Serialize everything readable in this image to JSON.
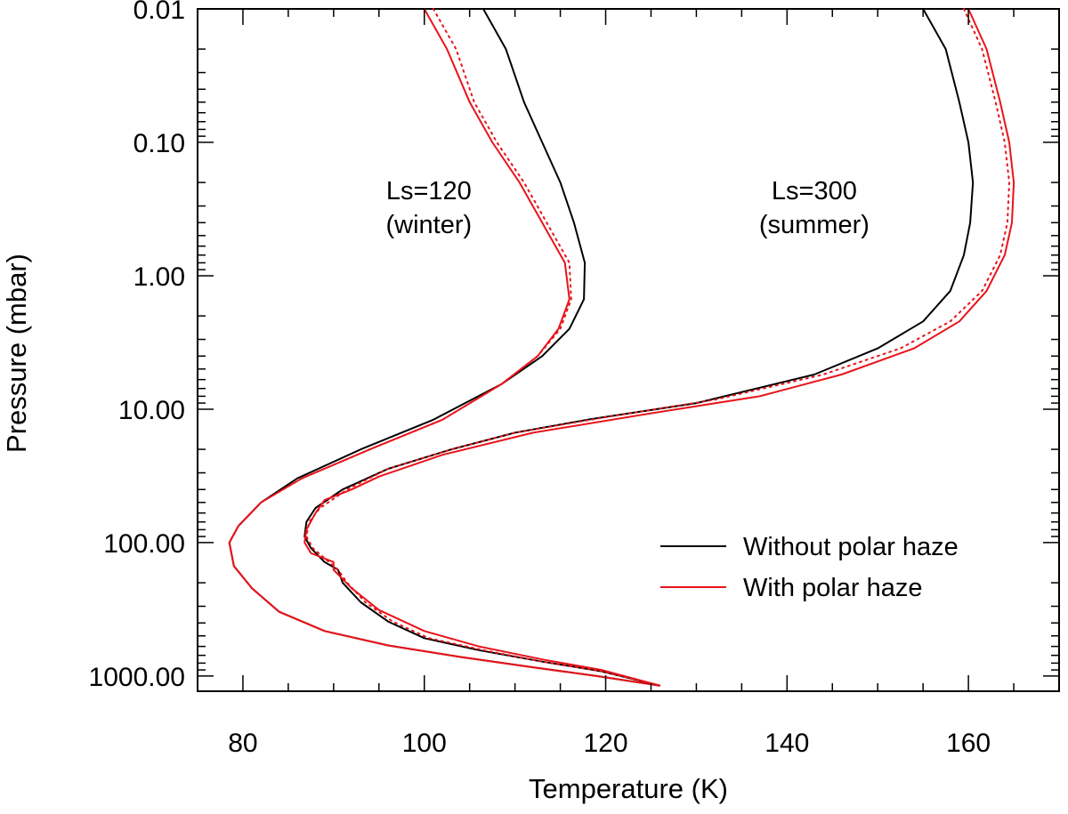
{
  "chart_data": {
    "type": "line",
    "title": "",
    "xlabel": "Temperature (K)",
    "ylabel": "Pressure (mbar)",
    "xlim": [
      75,
      170
    ],
    "ylim": [
      0.01,
      1300
    ],
    "y_scale": "log",
    "y_reversed": true,
    "grid": false,
    "xticks": [
      80,
      100,
      120,
      140,
      160
    ],
    "xtick_labels": [
      "80",
      "100",
      "120",
      "140",
      "160"
    ],
    "yticks": [
      0.01,
      0.1,
      1,
      10,
      100,
      1000
    ],
    "ytick_labels": [
      "0.01",
      "0.10",
      "1.00",
      "10.00",
      "100.00",
      "1000.00"
    ],
    "legend_position": "lower-right",
    "legend": [
      {
        "label": "Without polar haze",
        "color": "#000000"
      },
      {
        "label": "With polar haze",
        "color": "#e8141b"
      }
    ],
    "annotations": [
      {
        "line1": "Ls=120",
        "line2": "(winter)",
        "T": 100.5,
        "P": 0.45
      },
      {
        "line1": "Ls=300",
        "line2": "(summer)",
        "T": 143,
        "P": 0.45
      }
    ],
    "series": [
      {
        "group": "Ls=120",
        "color": "#000000",
        "style": "solid",
        "points": [
          [
            106.5,
            0.01
          ],
          [
            109,
            0.02
          ],
          [
            111,
            0.05
          ],
          [
            113,
            0.1
          ],
          [
            115,
            0.2
          ],
          [
            116.5,
            0.4
          ],
          [
            117.7,
            0.8
          ],
          [
            117.6,
            1.5
          ],
          [
            116,
            2.5
          ],
          [
            113,
            4
          ],
          [
            108.5,
            6.5
          ],
          [
            101,
            12
          ],
          [
            93,
            20
          ],
          [
            86,
            33
          ],
          [
            82,
            50
          ],
          [
            79.5,
            75
          ],
          [
            78.5,
            100
          ],
          [
            79,
            150
          ],
          [
            81,
            220
          ],
          [
            84,
            330
          ],
          [
            89,
            460
          ],
          [
            96,
            590
          ],
          [
            104,
            720
          ],
          [
            112,
            860
          ],
          [
            119,
            1000
          ],
          [
            126,
            1180
          ]
        ]
      },
      {
        "group": "Ls=120",
        "color": "#e8141b",
        "style": "solid",
        "points": [
          [
            100,
            0.01
          ],
          [
            102.5,
            0.02
          ],
          [
            105,
            0.05
          ],
          [
            107.5,
            0.1
          ],
          [
            110.5,
            0.2
          ],
          [
            113,
            0.4
          ],
          [
            115.5,
            0.8
          ],
          [
            116,
            1.5
          ],
          [
            114.8,
            2.5
          ],
          [
            112.5,
            4
          ],
          [
            108.5,
            6.5
          ],
          [
            102,
            12
          ],
          [
            94,
            20
          ],
          [
            86.5,
            33
          ],
          [
            82,
            50
          ],
          [
            79.5,
            75
          ],
          [
            78.5,
            100
          ],
          [
            79,
            150
          ],
          [
            81,
            220
          ],
          [
            84,
            330
          ],
          [
            89,
            460
          ],
          [
            96,
            590
          ],
          [
            104,
            720
          ],
          [
            112,
            860
          ],
          [
            119,
            1000
          ],
          [
            126,
            1180
          ]
        ]
      },
      {
        "group": "Ls=120",
        "color": "#e8141b",
        "style": "dotted",
        "points": [
          [
            101,
            0.01
          ],
          [
            103.5,
            0.02
          ],
          [
            105.5,
            0.05
          ],
          [
            108,
            0.1
          ],
          [
            111,
            0.2
          ],
          [
            113.5,
            0.4
          ],
          [
            116,
            0.8
          ],
          [
            116.2,
            1.5
          ],
          [
            115,
            2.5
          ],
          [
            112.5,
            4
          ],
          [
            108.5,
            6.5
          ],
          [
            102,
            12
          ],
          [
            94,
            20
          ],
          [
            86.5,
            33
          ],
          [
            82,
            50
          ],
          [
            79.5,
            75
          ],
          [
            78.5,
            100
          ],
          [
            79,
            150
          ],
          [
            81,
            220
          ],
          [
            84,
            330
          ],
          [
            89,
            460
          ],
          [
            96,
            590
          ],
          [
            104,
            720
          ],
          [
            112,
            860
          ],
          [
            119,
            1000
          ],
          [
            126,
            1180
          ]
        ]
      },
      {
        "group": "Ls=300",
        "color": "#000000",
        "style": "solid",
        "points": [
          [
            155,
            0.01
          ],
          [
            157.5,
            0.02
          ],
          [
            159,
            0.05
          ],
          [
            160,
            0.1
          ],
          [
            160.5,
            0.2
          ],
          [
            160.2,
            0.4
          ],
          [
            159.5,
            0.7
          ],
          [
            158,
            1.3
          ],
          [
            155,
            2.2
          ],
          [
            150,
            3.5
          ],
          [
            143,
            5.5
          ],
          [
            130,
            9
          ],
          [
            118,
            12
          ],
          [
            110,
            15
          ],
          [
            103,
            20
          ],
          [
            96,
            28
          ],
          [
            91,
            40
          ],
          [
            88,
            55
          ],
          [
            87,
            70
          ],
          [
            86.8,
            90
          ],
          [
            87.5,
            110
          ],
          [
            89,
            140
          ],
          [
            90.5,
            160
          ],
          [
            91,
            200
          ],
          [
            93,
            280
          ],
          [
            96,
            390
          ],
          [
            100,
            520
          ],
          [
            106,
            640
          ],
          [
            113,
            780
          ],
          [
            119.5,
            920
          ],
          [
            126,
            1180
          ]
        ]
      },
      {
        "group": "Ls=300",
        "color": "#e8141b",
        "style": "solid",
        "points": [
          [
            160,
            0.01
          ],
          [
            162,
            0.02
          ],
          [
            163.5,
            0.05
          ],
          [
            164.5,
            0.1
          ],
          [
            165,
            0.2
          ],
          [
            164.8,
            0.4
          ],
          [
            164,
            0.7
          ],
          [
            162,
            1.3
          ],
          [
            159,
            2.2
          ],
          [
            154,
            3.5
          ],
          [
            146,
            5.5
          ],
          [
            137,
            8
          ],
          [
            124,
            11
          ],
          [
            112,
            15
          ],
          [
            102,
            22
          ],
          [
            95,
            32
          ],
          [
            92,
            40
          ],
          [
            89,
            48
          ],
          [
            88,
            60
          ],
          [
            87,
            80
          ],
          [
            86.8,
            100
          ],
          [
            87.5,
            120
          ],
          [
            90,
            140
          ],
          [
            90,
            160
          ],
          [
            92,
            220
          ],
          [
            95,
            320
          ],
          [
            100,
            460
          ],
          [
            106,
            600
          ],
          [
            113,
            750
          ],
          [
            119.5,
            900
          ],
          [
            126,
            1180
          ]
        ]
      },
      {
        "group": "Ls=300",
        "color": "#e8141b",
        "style": "dotted",
        "points": [
          [
            159.5,
            0.01
          ],
          [
            161.5,
            0.02
          ],
          [
            163,
            0.05
          ],
          [
            164,
            0.1
          ],
          [
            164.5,
            0.2
          ],
          [
            164.3,
            0.4
          ],
          [
            163.5,
            0.7
          ],
          [
            161.5,
            1.3
          ],
          [
            158,
            2.2
          ],
          [
            152.5,
            3.5
          ],
          [
            144,
            5.5
          ],
          [
            132,
            8.5
          ],
          [
            120,
            11.5
          ],
          [
            110,
            15
          ],
          [
            103,
            20
          ],
          [
            96,
            28
          ],
          [
            91.5,
            40
          ],
          [
            88.5,
            55
          ],
          [
            87.3,
            70
          ],
          [
            87,
            90
          ],
          [
            87.7,
            110
          ],
          [
            89.5,
            140
          ],
          [
            90.5,
            160
          ],
          [
            91.5,
            200
          ],
          [
            93.5,
            280
          ],
          [
            96.5,
            390
          ],
          [
            100.5,
            520
          ],
          [
            106.5,
            640
          ],
          [
            113,
            780
          ],
          [
            119.5,
            920
          ],
          [
            126,
            1180
          ]
        ]
      }
    ]
  }
}
